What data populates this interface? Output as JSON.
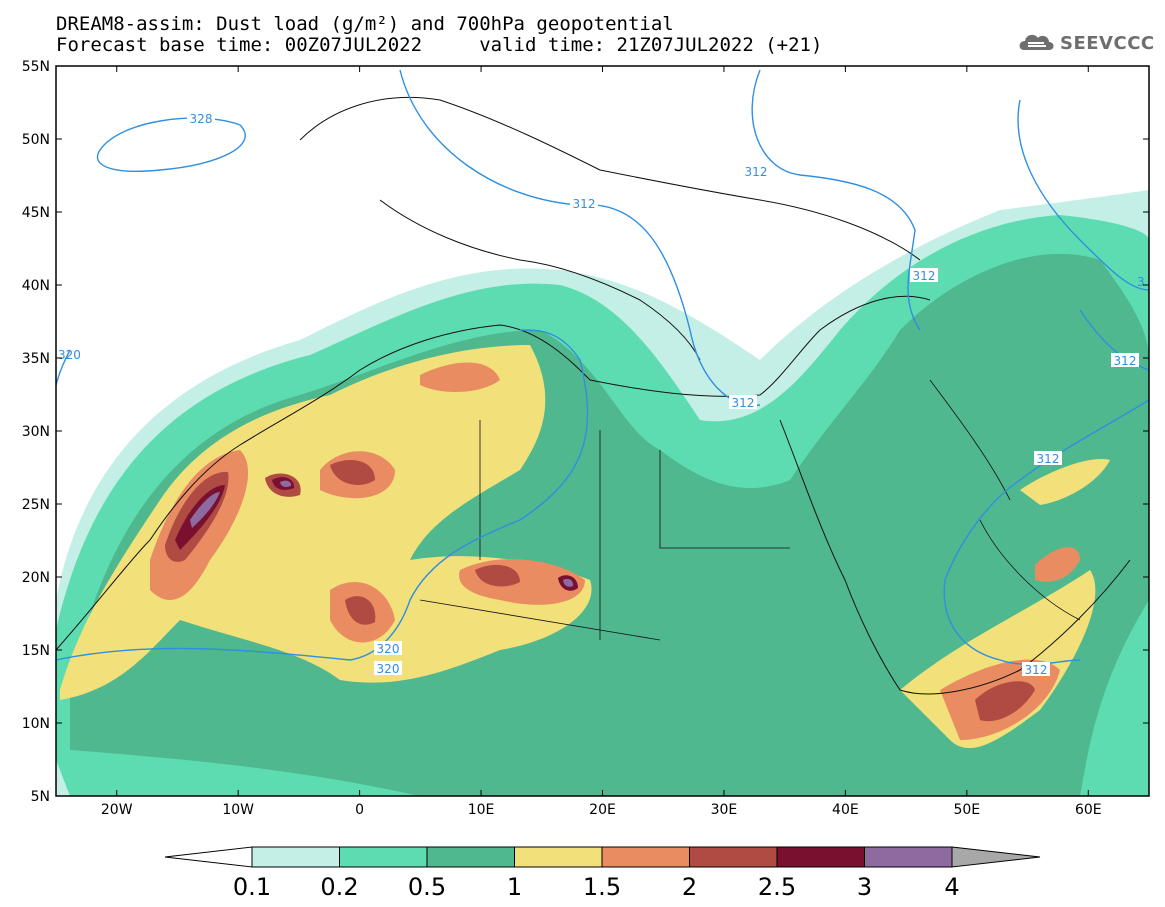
{
  "title": {
    "line1": "DREAM8-assim: Dust load (g/m²) and 700hPa geopotential",
    "line2": "Forecast base time: 00Z07JUL2022     valid time: 21Z07JUL2022 (+21)"
  },
  "logo": {
    "text": "SEEVCCC",
    "icon": "cloud-icon"
  },
  "map": {
    "lat_labels": [
      "55N",
      "50N",
      "45N",
      "40N",
      "35N",
      "30N",
      "25N",
      "20N",
      "15N",
      "10N",
      "5N"
    ],
    "lon_labels": [
      "20W",
      "10W",
      "0",
      "10E",
      "20E",
      "30E",
      "40E",
      "50E",
      "60E"
    ],
    "lat_range": [
      5,
      55
    ],
    "lon_range": [
      -25,
      65
    ],
    "contour_labels": [
      "328",
      "312",
      "312",
      "312",
      "312",
      "312",
      "312",
      "312",
      "320",
      "320",
      "320",
      "3"
    ]
  },
  "colorbar": {
    "ticks": [
      "0.1",
      "0.2",
      "0.5",
      "1",
      "1.5",
      "2",
      "2.5",
      "3",
      "4"
    ],
    "colors": [
      "#c4efe6",
      "#5edcb1",
      "#4fb88f",
      "#f2e07a",
      "#e98c62",
      "#b04b43",
      "#7a1030",
      "#8d6ba0",
      "#a8a8a8"
    ]
  }
}
